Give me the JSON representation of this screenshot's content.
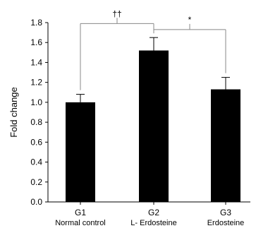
{
  "chart_data": {
    "type": "bar",
    "title": "",
    "xlabel": "",
    "ylabel": "Fold change",
    "ylim": [
      0,
      1.8
    ],
    "yticks": [
      "0.0",
      "0.2",
      "0.4",
      "0.6",
      "0.8",
      "1.0",
      "1.2",
      "1.4",
      "1.6",
      "1.8"
    ],
    "categories": [
      {
        "label": "G1",
        "sublabel": "Normal control"
      },
      {
        "label": "G2",
        "sublabel": "L- Erdosteine"
      },
      {
        "label": "G3",
        "sublabel": "Erdosteine"
      }
    ],
    "values": [
      1.0,
      1.52,
      1.13
    ],
    "errors": [
      0.08,
      0.13,
      0.12
    ],
    "bar_color": "#000000",
    "grid": false,
    "significance": [
      {
        "from": 0,
        "to": 1,
        "label": "††",
        "y": 1.79
      },
      {
        "from": 1,
        "to": 2,
        "label": "*",
        "y": 1.73
      }
    ]
  }
}
